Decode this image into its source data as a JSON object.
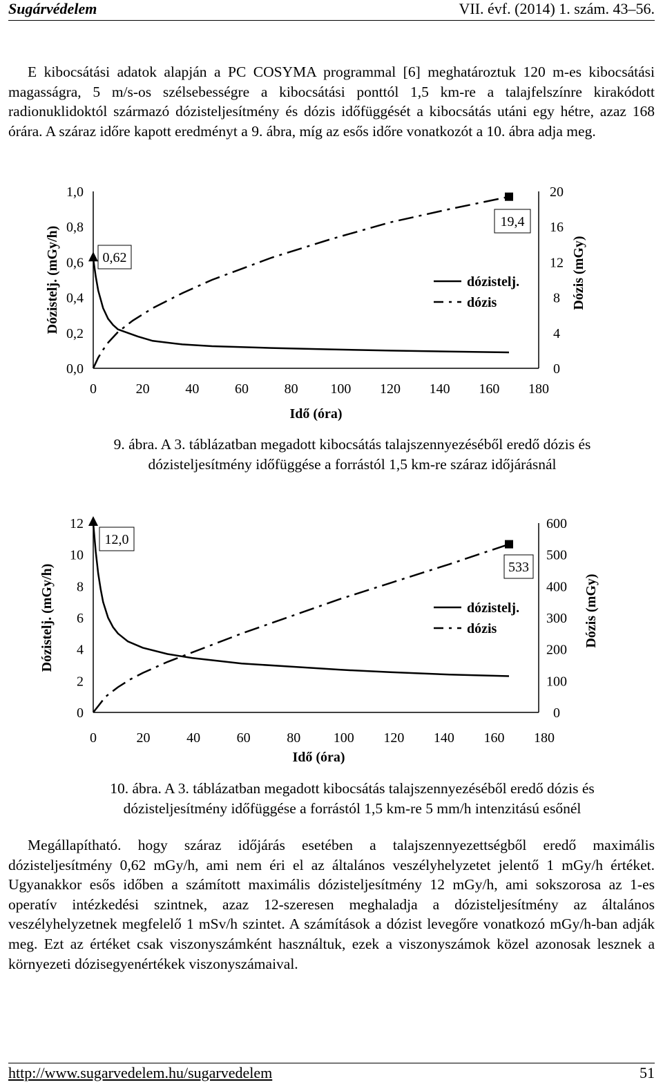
{
  "header": {
    "journal": "Sugárvédelem",
    "issue": "VII. évf. (2014) 1. szám. 43–56."
  },
  "intro_text": "E kibocsátási adatok alapján a PC COSYMA programmal [6] meghatároztuk 120 m-es kibocsátási magasságra, 5 m/s-os szélsebességre a kibocsátási ponttól 1,5 km-re a talajfelszínre kirakódott radionuklidoktól származó dózisteljesítmény és dózis időfüggését a kibocsátás utáni egy hétre, azaz 168 órára. A száraz időre kapott eredményt a 9. ábra, míg az esős időre vonatkozót a 10. ábra adja meg.",
  "figure1": {
    "caption_line1": "9. ábra. A 3. táblázatban megadott kibocsátás talajszennyezéséből eredő dózis és",
    "caption_line2": "dózisteljesítmény időfüggése a forrástól 1,5 km-re száraz időjárásnál"
  },
  "figure2": {
    "caption_line1": "10. ábra. A 3. táblázatban megadott kibocsátás talajszennyezéséből eredő dózis és",
    "caption_line2": "dózisteljesítmény időfüggése a forrástól 1,5 km-re 5 mm/h intenzitású esőnél"
  },
  "conclusion_text": "Megállapítható. hogy száraz időjárás esetében a talajszennyezettségből eredő maximális dózisteljesítmény 0,62 mGy/h, ami nem éri el az általános veszélyhelyzetet jelentő 1 mGy/h értéket. Ugyanakkor esős időben a számított maximális dózisteljesítmény 12 mGy/h, ami sokszorosa az 1-es operatív intézkedési szintnek, azaz 12-szeresen meghaladja a dózisteljesítmény az általános veszélyhelyzetnek megfelelő 1 mSv/h szintet. A számítások a dózist levegőre vonatkozó mGy/h-ban adják meg. Ezt az értéket csak viszonyszámként használtuk, ezek a viszonyszámok közel azonosak lesznek a környezeti dózisegyenértékek viszonyszámaival.",
  "footer": {
    "url": "http://www.sugarvedelem.hu/sugarvedelem",
    "page": "51"
  },
  "chart_data": [
    {
      "type": "line",
      "xlabel": "Idő (óra)",
      "ylabel": "Dózistelj. (mGy/h)",
      "y2label": "Dózis (mGy)",
      "xlim": [
        0,
        180
      ],
      "ylim": [
        0,
        1.0
      ],
      "y2lim": [
        0,
        20
      ],
      "xticks": [
        "0",
        "20",
        "40",
        "60",
        "80",
        "100",
        "120",
        "140",
        "160",
        "180"
      ],
      "yticks": [
        "0,0",
        "0,2",
        "0,4",
        "0,6",
        "0,8",
        "1,0"
      ],
      "y2ticks": [
        "0",
        "4",
        "8",
        "12",
        "16",
        "20"
      ],
      "legend": [
        "dózistelj.",
        "dózis"
      ],
      "annotations": [
        "0,62",
        "19,4"
      ],
      "series": [
        {
          "name": "dózistelj.",
          "axis": "left",
          "style": "solid",
          "x": [
            0,
            1,
            2,
            4,
            6,
            8,
            10,
            14,
            18,
            24,
            36,
            48,
            72,
            96,
            120,
            144,
            168
          ],
          "y": [
            0.62,
            0.52,
            0.44,
            0.34,
            0.28,
            0.245,
            0.22,
            0.2,
            0.18,
            0.155,
            0.135,
            0.125,
            0.115,
            0.107,
            0.1,
            0.095,
            0.09
          ]
        },
        {
          "name": "dózis",
          "axis": "right",
          "style": "dashed",
          "x": [
            0,
            1,
            2,
            4,
            6,
            10,
            16,
            24,
            36,
            48,
            72,
            96,
            120,
            144,
            168
          ],
          "y": [
            0,
            0.6,
            1.2,
            2.1,
            2.9,
            4.1,
            5.4,
            6.8,
            8.5,
            10.0,
            12.5,
            14.6,
            16.5,
            18.0,
            19.4
          ]
        }
      ]
    },
    {
      "type": "line",
      "xlabel": "Idő (óra)",
      "ylabel": "Dózistelj. (mGy/h)",
      "y2label": "Dózis (mGy)",
      "xlim": [
        0,
        180
      ],
      "ylim": [
        0,
        12
      ],
      "y2lim": [
        0,
        600
      ],
      "xticks": [
        "0",
        "20",
        "40",
        "60",
        "80",
        "100",
        "120",
        "140",
        "160",
        "180"
      ],
      "yticks": [
        "0",
        "2",
        "4",
        "6",
        "8",
        "10",
        "12"
      ],
      "y2ticks": [
        "0",
        "100",
        "200",
        "300",
        "400",
        "500",
        "600"
      ],
      "legend": [
        "dózistelj.",
        "dózis"
      ],
      "annotations": [
        "12,0",
        "533"
      ],
      "series": [
        {
          "name": "dózistelj.",
          "axis": "left",
          "style": "solid",
          "x": [
            0,
            1,
            2,
            3,
            4,
            6,
            8,
            10,
            14,
            20,
            30,
            40,
            60,
            80,
            100,
            120,
            144,
            168
          ],
          "y": [
            12.0,
            10.2,
            8.8,
            7.8,
            7.0,
            6.0,
            5.4,
            5.0,
            4.5,
            4.1,
            3.7,
            3.45,
            3.1,
            2.9,
            2.7,
            2.55,
            2.4,
            2.3
          ]
        },
        {
          "name": "dózis",
          "axis": "right",
          "style": "dashed",
          "x": [
            0,
            2,
            5,
            10,
            15,
            20,
            30,
            40,
            60,
            80,
            100,
            120,
            144,
            168
          ],
          "y": [
            0,
            20,
            50,
            80,
            105,
            125,
            160,
            190,
            250,
            305,
            360,
            410,
            470,
            533
          ]
        }
      ]
    }
  ]
}
